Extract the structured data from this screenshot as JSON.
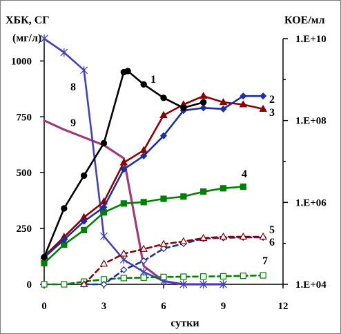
{
  "chart_data": {
    "type": "line",
    "left_title": "ХБК, СГ",
    "left_unit": "(мг/л)",
    "right_title": "КОЕ/мл",
    "xlabel": "сутки",
    "xlim": [
      0,
      12
    ],
    "x_ticks": [
      "0",
      "3",
      "6",
      "9",
      "12"
    ],
    "ylim_left": [
      0,
      1100
    ],
    "y_ticks_left": [
      "0",
      "250",
      "500",
      "750",
      "1000"
    ],
    "ylim_right": [
      10000,
      10000000000
    ],
    "y_scale_right": "log",
    "y_ticks_right": [
      "1.E+04",
      "1.E+06",
      "1.E+08",
      "1.E+10"
    ],
    "grid": false,
    "series": [
      {
        "name": "1",
        "axis": "left",
        "color": "#000000",
        "marker": "circle-filled",
        "dash": false,
        "x": [
          0,
          1,
          2,
          3,
          4,
          4.2,
          5,
          6,
          7,
          8
        ],
        "y": [
          122,
          340,
          487,
          632,
          950,
          955,
          895,
          835,
          790,
          815
        ]
      },
      {
        "name": "2",
        "axis": "left",
        "color": "#1c2fa0",
        "marker": "diamond-filled",
        "dash": false,
        "x": [
          0,
          1,
          2,
          3,
          4,
          5,
          6,
          7,
          8,
          9,
          10,
          11
        ],
        "y": [
          120,
          200,
          282,
          345,
          515,
          575,
          665,
          778,
          790,
          785,
          843,
          843
        ]
      },
      {
        "name": "3",
        "axis": "left",
        "color": "#8b0000",
        "marker": "triangle-filled",
        "dash": false,
        "x": [
          0,
          1,
          2,
          3,
          4,
          5,
          6,
          7,
          8,
          9,
          10,
          11
        ],
        "y": [
          125,
          212,
          300,
          370,
          545,
          600,
          757,
          805,
          843,
          815,
          805,
          785
        ]
      },
      {
        "name": "4",
        "axis": "left",
        "color": "#008000",
        "marker": "square-filled",
        "dash": false,
        "x": [
          0,
          1,
          2,
          3,
          4,
          5,
          6,
          7,
          8,
          9,
          10
        ],
        "y": [
          95,
          178,
          243,
          322,
          362,
          368,
          383,
          393,
          415,
          430,
          437
        ]
      },
      {
        "name": "5",
        "axis": "left",
        "color": "#8b0000",
        "marker": "triangle-open",
        "dash": true,
        "x": [
          2,
          3,
          4,
          5,
          6,
          7,
          8,
          9,
          10,
          11
        ],
        "y": [
          0,
          92,
          137,
          158,
          180,
          192,
          207,
          213,
          213,
          213
        ]
      },
      {
        "name": "6",
        "axis": "left",
        "color": "#1c2fa0",
        "marker": "diamond-open",
        "dash": true,
        "x": [
          2,
          3,
          4,
          5,
          6,
          7,
          8,
          9,
          10,
          11
        ],
        "y": [
          0,
          0,
          65,
          105,
          160,
          182,
          205,
          208,
          210,
          210
        ]
      },
      {
        "name": "7",
        "axis": "left",
        "color": "#008000",
        "marker": "square-open",
        "dash": true,
        "x": [
          0,
          1,
          2,
          3,
          4,
          5,
          6,
          7,
          8,
          9,
          10,
          11
        ],
        "y": [
          0,
          0,
          12,
          22,
          28,
          30,
          33,
          34,
          35,
          36,
          38,
          40
        ]
      },
      {
        "name": "8",
        "axis": "right",
        "color": "#4040c0",
        "marker": "star",
        "dash": false,
        "x": [
          0,
          1,
          2,
          3,
          4,
          5,
          6,
          7,
          8,
          9
        ],
        "y": [
          10000000000,
          4600000000,
          1700000000,
          150000,
          40000,
          20000,
          12000,
          10000,
          10000,
          10000
        ]
      },
      {
        "name": "9",
        "axis": "right",
        "color": "#9e3a7e",
        "marker": "none",
        "dash": false,
        "x": [
          0,
          1,
          3,
          4,
          5,
          6,
          7,
          9
        ],
        "y": [
          100000000,
          60000000,
          25000000,
          12000000,
          28000,
          12000,
          10000,
          10000
        ]
      }
    ]
  }
}
